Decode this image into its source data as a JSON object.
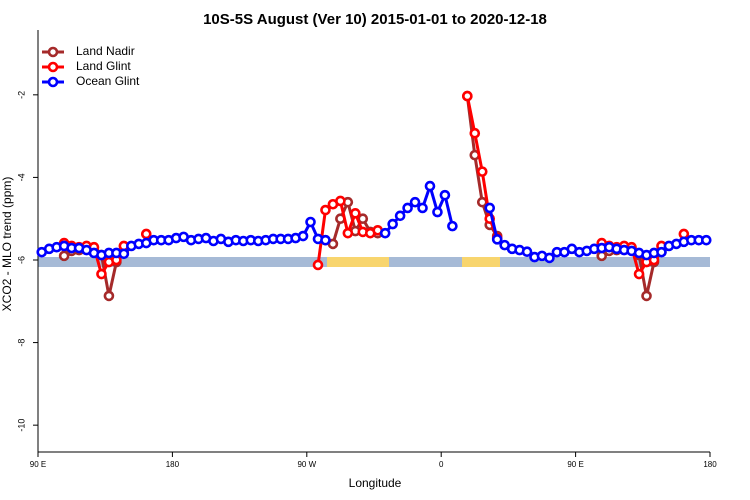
{
  "chart_data": {
    "type": "line",
    "title": "10S-5S August (Ver 10)   2015-01-01 to 2020-12-18",
    "xlabel": "Longitude",
    "ylabel": "XCO2 - MLO trend (ppm)",
    "xlim": [
      90,
      540
    ],
    "ylim": [
      -10.65,
      -0.43
    ],
    "xticks": [
      {
        "value": 90,
        "label": "90 E"
      },
      180,
      {
        "value": 270,
        "label": "90 W"
      },
      {
        "value": 360,
        "label": "0"
      },
      {
        "value": 450,
        "label": "90 E"
      },
      {
        "value": 540,
        "label": "180"
      }
    ],
    "yticks": [
      -2,
      -4,
      -6,
      -8,
      -10
    ],
    "legend": "upper left",
    "x": [
      92.5,
      97.5,
      102.5,
      107.5,
      112.5,
      117.5,
      122.5,
      127.5,
      132.5,
      137.5,
      142.5,
      147.5,
      152.5,
      157.5,
      162.5,
      167.5,
      172.5,
      177.5,
      182.5,
      187.5,
      192.5,
      197.5,
      202.5,
      207.5,
      212.5,
      217.5,
      222.5,
      227.5,
      232.5,
      237.5,
      242.5,
      247.5,
      252.5,
      257.5,
      262.5,
      267.5,
      272.5,
      277.5,
      282.5,
      287.5,
      292.5,
      297.5,
      302.5,
      307.5,
      312.5,
      317.5,
      322.5,
      327.5,
      332.5,
      337.5,
      342.5,
      347.5,
      352.5,
      357.5,
      362.5,
      367.5,
      372.5,
      377.5,
      382.5,
      387.5,
      392.5,
      397.5,
      402.5,
      407.5,
      412.5,
      417.5,
      422.5,
      427.5,
      432.5,
      437.5,
      442.5,
      447.5,
      452.5,
      457.5,
      462.5,
      467.5,
      472.5,
      477.5,
      482.5,
      487.5,
      492.5,
      497.5,
      502.5,
      507.5,
      512.5,
      517.5,
      522.5,
      527.5,
      532.5,
      537.5
    ],
    "series": [
      {
        "name": "Land Nadir",
        "color": "#a52a2a",
        "values": [
          null,
          null,
          null,
          -5.9,
          -5.78,
          -5.76,
          -5.71,
          -5.76,
          -5.88,
          -6.87,
          -6.05,
          -5.8,
          null,
          null,
          null,
          null,
          null,
          null,
          null,
          null,
          null,
          null,
          null,
          null,
          null,
          null,
          null,
          null,
          null,
          null,
          null,
          null,
          null,
          null,
          null,
          null,
          null,
          null,
          -5.52,
          -5.61,
          -5.0,
          -4.6,
          -5.3,
          -5.0,
          -5.32,
          -5.35,
          null,
          null,
          null,
          null,
          null,
          null,
          null,
          null,
          null,
          null,
          null,
          -2.03,
          -3.46,
          -4.6,
          -5.15,
          -5.42,
          null,
          null,
          null,
          null,
          null,
          null,
          null,
          null,
          null,
          null,
          null,
          null,
          null,
          -5.9,
          -5.78,
          -5.76,
          -5.71,
          -5.76,
          -5.88,
          -6.87,
          -6.05,
          -5.8,
          null,
          null,
          null,
          null,
          null,
          null
        ]
      },
      {
        "name": "Land Glint",
        "color": "#ff0000",
        "values": [
          null,
          null,
          null,
          -5.59,
          -5.66,
          -5.69,
          -5.66,
          -5.69,
          -6.34,
          -6.05,
          -6.0,
          -5.66,
          null,
          null,
          -5.37,
          null,
          null,
          null,
          null,
          null,
          null,
          null,
          null,
          null,
          null,
          null,
          null,
          null,
          null,
          null,
          null,
          null,
          null,
          null,
          null,
          null,
          null,
          -6.12,
          -4.79,
          -4.65,
          -4.57,
          -5.35,
          -4.87,
          -5.32,
          -5.35,
          -5.28,
          null,
          null,
          null,
          null,
          null,
          null,
          null,
          null,
          null,
          null,
          null,
          -2.03,
          -2.93,
          -3.86,
          -5.0,
          -5.47,
          null,
          null,
          null,
          null,
          null,
          null,
          null,
          null,
          null,
          null,
          null,
          null,
          null,
          -5.59,
          -5.66,
          -5.69,
          -5.66,
          -5.69,
          -6.34,
          -6.05,
          -6.0,
          -5.66,
          null,
          null,
          -5.37,
          null,
          null,
          null
        ]
      },
      {
        "name": "Ocean Glint",
        "color": "#0000ff",
        "values": [
          -5.81,
          -5.73,
          -5.69,
          -5.66,
          -5.71,
          -5.71,
          -5.76,
          -5.83,
          -5.88,
          -5.83,
          -5.83,
          -5.85,
          -5.66,
          -5.61,
          -5.59,
          -5.52,
          -5.52,
          -5.52,
          -5.47,
          -5.44,
          -5.52,
          -5.49,
          -5.47,
          -5.54,
          -5.49,
          -5.56,
          -5.52,
          -5.54,
          -5.52,
          -5.54,
          -5.52,
          -5.49,
          -5.49,
          -5.49,
          -5.47,
          -5.42,
          -5.08,
          -5.49,
          -5.52,
          null,
          null,
          null,
          null,
          null,
          null,
          null,
          -5.35,
          -5.13,
          -4.93,
          -4.74,
          -4.6,
          -4.74,
          -4.21,
          -4.84,
          -4.43,
          -5.18,
          null,
          null,
          null,
          null,
          -4.74,
          -5.5,
          -5.64,
          -5.73,
          -5.76,
          -5.8,
          -5.93,
          -5.9,
          -5.95,
          -5.81,
          -5.81,
          -5.73,
          -5.81,
          -5.78,
          -5.73,
          -5.71,
          -5.69,
          -5.73,
          -5.76,
          -5.78,
          -5.83,
          -5.88,
          -5.83,
          -5.81,
          -5.66,
          -5.61,
          -5.56,
          -5.52,
          -5.52,
          -5.52
        ]
      }
    ]
  }
}
